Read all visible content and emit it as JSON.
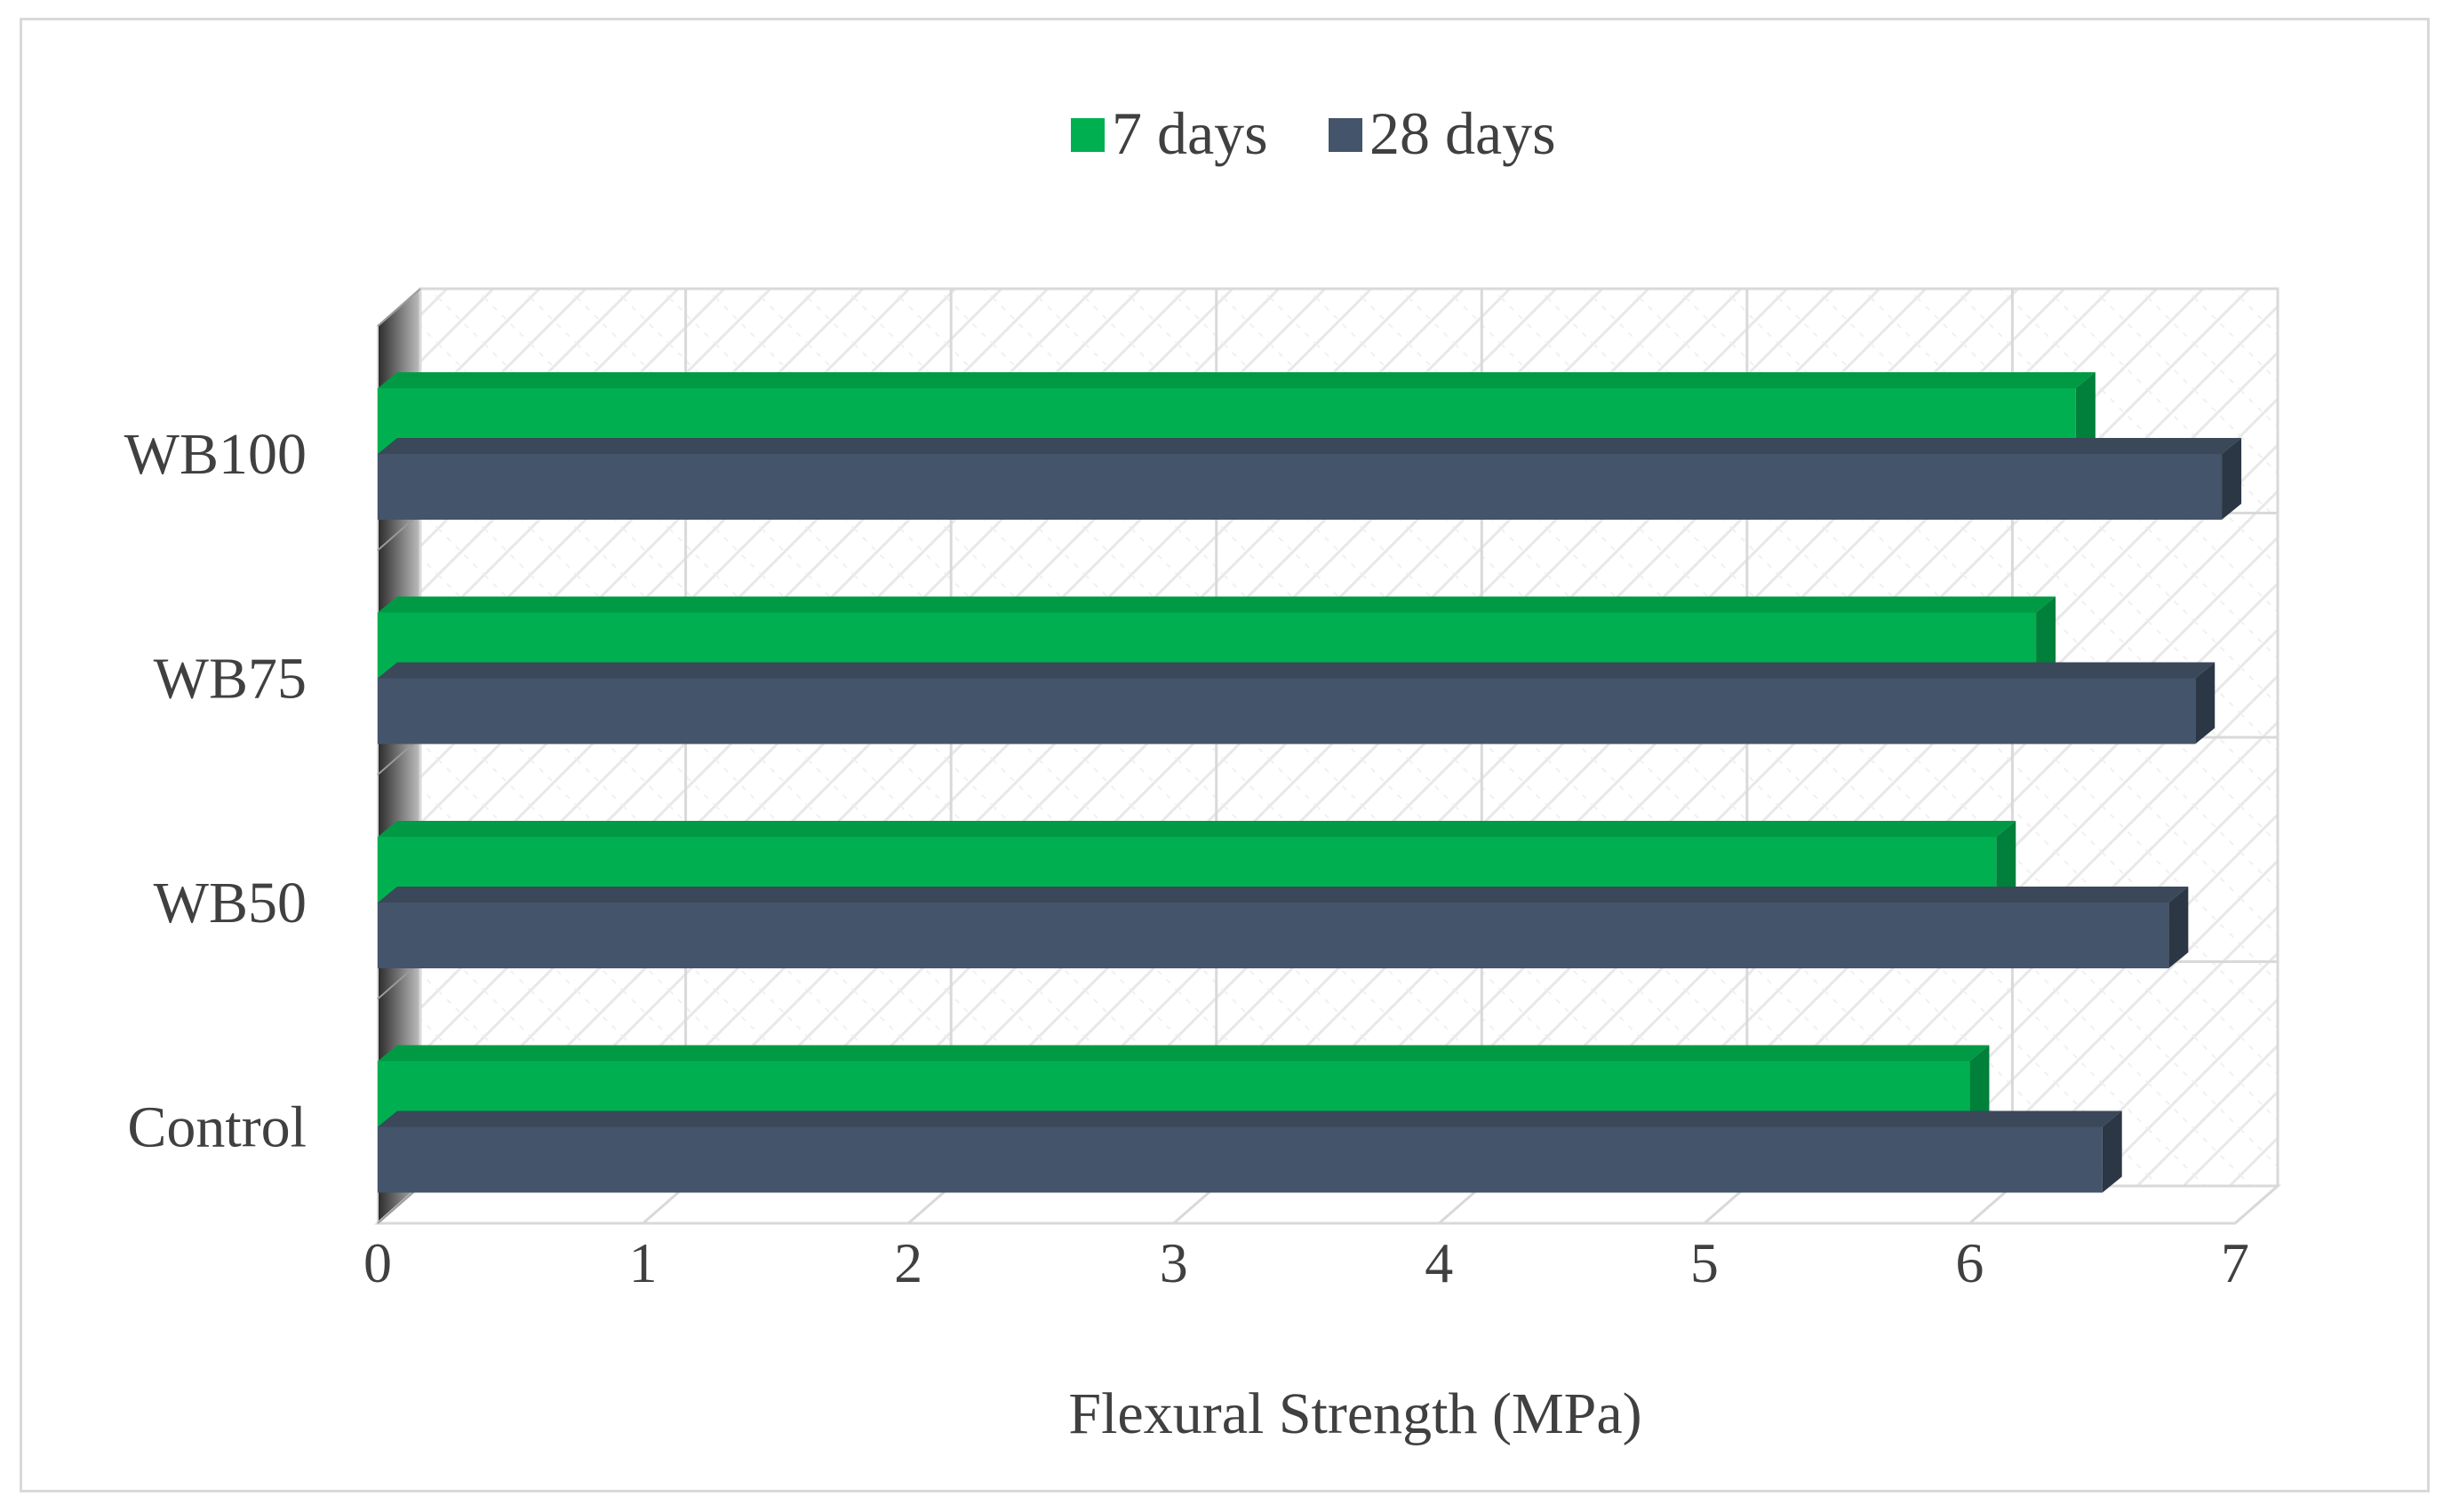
{
  "colors": {
    "series_7_days": "#00b050",
    "series_7_days_top": "#009a44",
    "series_7_days_end": "#00803a",
    "series_28_days": "#44546a",
    "series_28_days_top": "#3a4859",
    "series_28_days_end": "#2c3745",
    "grid": "#d9d9d9",
    "text": "#404040"
  },
  "chart_data": {
    "type": "bar",
    "orientation": "horizontal",
    "style": "3d-clustered",
    "title": "",
    "xlabel": "Flexural Strength (MPa)",
    "ylabel": "",
    "xlim": [
      0,
      7
    ],
    "x_ticks": [
      "0",
      "1",
      "2",
      "3",
      "4",
      "5",
      "6",
      "7"
    ],
    "categories": [
      "Control",
      "WB50",
      "WB75",
      "WB100"
    ],
    "series": [
      {
        "name": "7 days",
        "values": [
          6.0,
          6.1,
          6.25,
          6.4
        ]
      },
      {
        "name": "28 days",
        "values": [
          6.5,
          6.75,
          6.85,
          6.95
        ]
      }
    ],
    "legend_position": "top",
    "grid": true
  }
}
